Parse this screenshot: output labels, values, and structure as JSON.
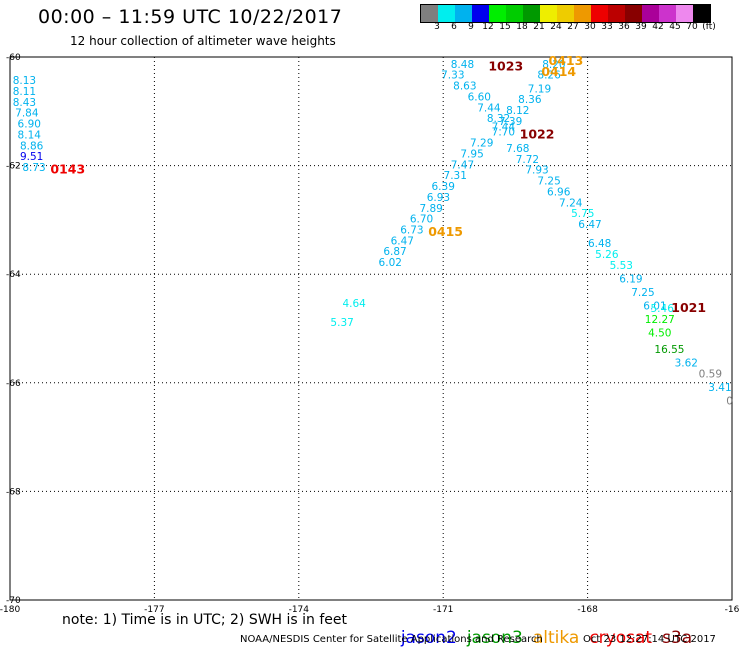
{
  "header": {
    "title": "00:00 – 11:59 UTC 10/22/2017",
    "subtitle": "12 hour collection of altimeter wave heights"
  },
  "colorbar": {
    "colors": [
      "#7f7f7f",
      "#00eeee",
      "#00b2ee",
      "#0000ee",
      "#00ee00",
      "#00cc00",
      "#009900",
      "#eeee00",
      "#eecc00",
      "#ee9900",
      "#ee0000",
      "#bb0000",
      "#880000",
      "#aa0099",
      "#cc33cc",
      "#ee88ee",
      "#000000"
    ],
    "labels": [
      "3",
      "6",
      "9",
      "12",
      "15",
      "18",
      "21",
      "24",
      "27",
      "30",
      "33",
      "36",
      "39",
      "42",
      "45",
      "70",
      "(ft)"
    ]
  },
  "footer": {
    "note": "note: 1) Time is in UTC; 2) SWH is in feet",
    "satellites": [
      {
        "name": "jason2",
        "color": "#0000ee"
      },
      {
        "name": "jason3",
        "color": "#009900"
      },
      {
        "name": "altika",
        "color": "#ee9900"
      },
      {
        "name": "cryosat",
        "color": "#ee0000"
      },
      {
        "name": "s3a",
        "color": "#880000"
      }
    ],
    "credit": "NOAA/NESDIS Center for Satellite Applications and Research",
    "timestamp": "Oct 23 12:27:14 UTC 2017"
  },
  "chart_data": {
    "type": "scatter",
    "xlim": [
      -180,
      -165
    ],
    "ylim": [
      -70,
      -60
    ],
    "xticks": [
      "-180",
      "-177",
      "-174",
      "-171",
      "-168",
      "-16"
    ],
    "yticks": [
      "-60",
      "-62",
      "-64",
      "-66",
      "-68",
      "-70"
    ],
    "grid": true,
    "points": [
      {
        "x": -179.7,
        "y": -60.5,
        "label": "8.13",
        "color": "#00b2ee"
      },
      {
        "x": -179.7,
        "y": -60.7,
        "label": "8.11",
        "color": "#00b2ee"
      },
      {
        "x": -179.7,
        "y": -60.9,
        "label": "8.43",
        "color": "#00b2ee"
      },
      {
        "x": -179.65,
        "y": -61.1,
        "label": "7.84",
        "color": "#00b2ee"
      },
      {
        "x": -179.6,
        "y": -61.3,
        "label": "6.90",
        "color": "#00b2ee"
      },
      {
        "x": -179.6,
        "y": -61.5,
        "label": "8.14",
        "color": "#00b2ee"
      },
      {
        "x": -179.55,
        "y": -61.7,
        "label": "8.86",
        "color": "#00b2ee"
      },
      {
        "x": -179.55,
        "y": -61.9,
        "label": "9.51",
        "color": "#0000ee"
      },
      {
        "x": -179.5,
        "y": -62.1,
        "label": "8.73",
        "color": "#00b2ee"
      },
      {
        "x": -168.7,
        "y": -60.2,
        "label": "8.20",
        "color": "#00b2ee"
      },
      {
        "x": -168.8,
        "y": -60.4,
        "label": "8.26",
        "color": "#00b2ee"
      },
      {
        "x": -169.0,
        "y": -60.65,
        "label": "7.19",
        "color": "#00b2ee"
      },
      {
        "x": -169.2,
        "y": -60.85,
        "label": "8.36",
        "color": "#00b2ee"
      },
      {
        "x": -169.45,
        "y": -61.05,
        "label": "8.12",
        "color": "#00b2ee"
      },
      {
        "x": -169.6,
        "y": -61.25,
        "label": "7.39",
        "color": "#00b2ee"
      },
      {
        "x": -169.75,
        "y": -61.45,
        "label": "7.70",
        "color": "#00b2ee"
      },
      {
        "x": -170.2,
        "y": -61.65,
        "label": "7.29",
        "color": "#00b2ee"
      },
      {
        "x": -170.4,
        "y": -61.85,
        "label": "7.95",
        "color": "#00b2ee"
      },
      {
        "x": -170.6,
        "y": -62.05,
        "label": "7.47",
        "color": "#00b2ee"
      },
      {
        "x": -170.75,
        "y": -62.25,
        "label": "7.31",
        "color": "#00b2ee"
      },
      {
        "x": -171.0,
        "y": -62.45,
        "label": "6.39",
        "color": "#00b2ee"
      },
      {
        "x": -171.1,
        "y": -62.65,
        "label": "6.93",
        "color": "#00b2ee"
      },
      {
        "x": -171.25,
        "y": -62.85,
        "label": "7.89",
        "color": "#00b2ee"
      },
      {
        "x": -171.45,
        "y": -63.05,
        "label": "6.70",
        "color": "#00b2ee"
      },
      {
        "x": -171.65,
        "y": -63.25,
        "label": "6.73",
        "color": "#00b2ee"
      },
      {
        "x": -171.85,
        "y": -63.45,
        "label": "6.47",
        "color": "#00b2ee"
      },
      {
        "x": -172.0,
        "y": -63.65,
        "label": "6.87",
        "color": "#00b2ee"
      },
      {
        "x": -172.1,
        "y": -63.85,
        "label": "6.02",
        "color": "#00b2ee"
      },
      {
        "x": -172.85,
        "y": -64.6,
        "label": "4.64",
        "color": "#00eeee"
      },
      {
        "x": -173.1,
        "y": -64.95,
        "label": "5.37",
        "color": "#00eeee"
      },
      {
        "x": -170.6,
        "y": -60.2,
        "label": "8.48",
        "color": "#00b2ee"
      },
      {
        "x": -170.8,
        "y": -60.4,
        "label": "7.33",
        "color": "#00b2ee"
      },
      {
        "x": -170.55,
        "y": -60.6,
        "label": "8.63",
        "color": "#00b2ee"
      },
      {
        "x": -170.25,
        "y": -60.8,
        "label": "6.60",
        "color": "#00b2ee"
      },
      {
        "x": -170.05,
        "y": -61.0,
        "label": "7.44",
        "color": "#00b2ee"
      },
      {
        "x": -169.85,
        "y": -61.2,
        "label": "8.32",
        "color": "#00b2ee"
      },
      {
        "x": -169.75,
        "y": -61.35,
        "label": "7.44",
        "color": "#00b2ee"
      },
      {
        "x": -169.45,
        "y": -61.75,
        "label": "7.68",
        "color": "#00b2ee"
      },
      {
        "x": -169.25,
        "y": -61.95,
        "label": "7.72",
        "color": "#00b2ee"
      },
      {
        "x": -169.05,
        "y": -62.15,
        "label": "7.93",
        "color": "#00b2ee"
      },
      {
        "x": -168.8,
        "y": -62.35,
        "label": "7.25",
        "color": "#00b2ee"
      },
      {
        "x": -168.6,
        "y": -62.55,
        "label": "6.96",
        "color": "#00b2ee"
      },
      {
        "x": -168.35,
        "y": -62.75,
        "label": "7.24",
        "color": "#00b2ee"
      },
      {
        "x": -168.1,
        "y": -62.95,
        "label": "5.75",
        "color": "#00eeee"
      },
      {
        "x": -167.95,
        "y": -63.15,
        "label": "6.47",
        "color": "#00b2ee"
      },
      {
        "x": -167.75,
        "y": -63.5,
        "label": "6.48",
        "color": "#00b2ee"
      },
      {
        "x": -167.6,
        "y": -63.7,
        "label": "5.26",
        "color": "#00eeee"
      },
      {
        "x": -167.3,
        "y": -63.9,
        "label": "5.53",
        "color": "#00eeee"
      },
      {
        "x": -167.1,
        "y": -64.15,
        "label": "6.19",
        "color": "#00b2ee"
      },
      {
        "x": -166.85,
        "y": -64.4,
        "label": "7.25",
        "color": "#00b2ee"
      },
      {
        "x": -166.6,
        "y": -64.65,
        "label": "6.01",
        "color": "#00b2ee"
      },
      {
        "x": -166.45,
        "y": -64.7,
        "label": "5.46",
        "color": "#00eeee"
      },
      {
        "x": -166.5,
        "y": -64.9,
        "label": "12.27",
        "color": "#00ee00"
      },
      {
        "x": -166.5,
        "y": -65.15,
        "label": "4.50",
        "color": "#00ee00"
      },
      {
        "x": -166.3,
        "y": -65.45,
        "label": "16.55",
        "color": "#009900"
      },
      {
        "x": -165.95,
        "y": -65.7,
        "label": "3.62",
        "color": "#00b2ee"
      },
      {
        "x": -165.45,
        "y": -65.9,
        "label": "0.59",
        "color": "#7f7f7f"
      },
      {
        "x": -165.25,
        "y": -66.15,
        "label": "3.41",
        "color": "#00b2ee"
      },
      {
        "x": -165.05,
        "y": -66.4,
        "label": "0",
        "color": "#7f7f7f"
      }
    ],
    "annotations": [
      {
        "x": -178.8,
        "y": -62.15,
        "text": "0143",
        "color": "#ee0000"
      },
      {
        "x": -169.7,
        "y": -60.25,
        "text": "1023",
        "color": "#880000"
      },
      {
        "x": -168.45,
        "y": -60.15,
        "text": "0413",
        "color": "#ee9900"
      },
      {
        "x": -168.6,
        "y": -60.35,
        "text": "0414",
        "color": "#ee9900"
      },
      {
        "x": -169.05,
        "y": -61.5,
        "text": "1022",
        "color": "#880000"
      },
      {
        "x": -170.95,
        "y": -63.3,
        "text": "0415",
        "color": "#ee9900"
      },
      {
        "x": -165.9,
        "y": -64.7,
        "text": "1021",
        "color": "#880000"
      }
    ]
  }
}
